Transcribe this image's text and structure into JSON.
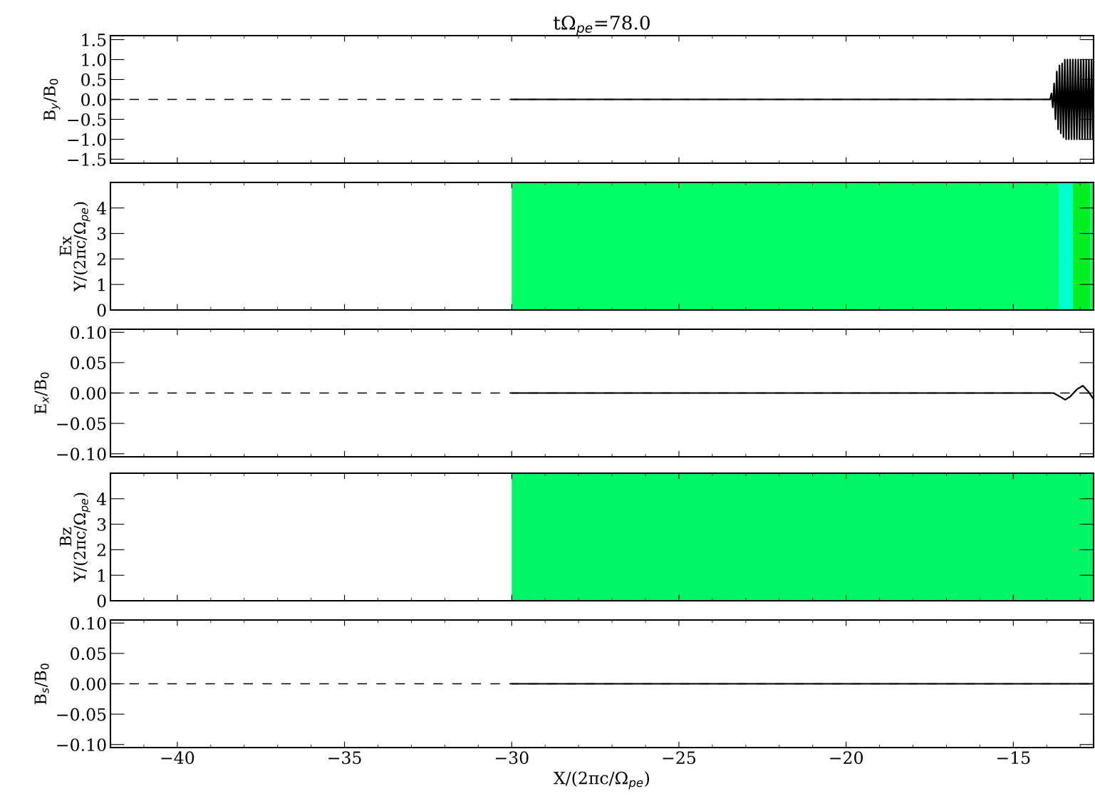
{
  "chart_data": [
    {
      "type": "line",
      "title": "tΩ$_{pe}$=78.0",
      "ylabel": "B$_{y}$/B$_{0}$",
      "xlim": [
        -42,
        -12.6
      ],
      "xticks": [
        -40,
        -35,
        -30,
        -25,
        -20,
        -15
      ],
      "ylim": [
        -1.6,
        1.6
      ],
      "tick_labels": "y",
      "line_style": "solid",
      "grid": false,
      "legend": false,
      "marker": "none",
      "yticks": [
        {
          "value": -1.5,
          "label": "−1.5"
        },
        {
          "value": -1.0,
          "label": "−1.0"
        },
        {
          "value": -0.5,
          "label": "−0.5"
        },
        {
          "value": 0,
          "label": "0.0"
        },
        {
          "value": 0.5,
          "label": "0.5"
        },
        {
          "value": 1.0,
          "label": "1.0"
        },
        {
          "value": 1.5,
          "label": "1.5"
        }
      ],
      "ref_lines": [
        {
          "axis": "y",
          "value": 0,
          "color": "#000000",
          "line_style": "dashed"
        }
      ],
      "series": [
        {
          "color": "#000000",
          "x": [
            -30,
            -13.9,
            -13.86,
            -13.82,
            -13.78,
            -13.74,
            -13.7,
            -13.66,
            -13.62,
            -13.58,
            -13.54,
            -13.5,
            -13.46,
            -13.42,
            -13.38,
            -13.34,
            -13.3,
            -13.26,
            -13.22,
            -13.18,
            -13.14,
            -13.1,
            -13.06,
            -13.02,
            -12.98,
            -12.94,
            -12.9,
            -12.86,
            -12.82,
            -12.78,
            -12.74,
            -12.7,
            -12.66,
            -12.62
          ],
          "values": [
            0,
            0,
            0.15,
            -0.2,
            0.4,
            -0.5,
            0.7,
            -0.75,
            0.85,
            -0.85,
            0.9,
            -0.95,
            1.0,
            -1.0,
            1.0,
            -1.0,
            1.0,
            -1.0,
            1.0,
            -1.0,
            1.0,
            -1.0,
            1.0,
            -1.0,
            1.0,
            -1.0,
            1.0,
            -1.0,
            1.0,
            -1.0,
            1.0,
            -1.0,
            1.0,
            -1.0
          ]
        }
      ]
    },
    {
      "type": "line",
      "ylabel": "Ex\nY/(2πc/Ω$_{pe}$)",
      "xlim": [
        -42,
        -12.6
      ],
      "xticks": [
        -40,
        -35,
        -30,
        -25,
        -20,
        -15
      ],
      "ylim": [
        0,
        5
      ],
      "yticks": [
        0,
        1,
        2,
        3,
        4
      ],
      "tick_labels": "y",
      "bands": [
        {
          "axis": "x",
          "from": -30,
          "to": -13.66,
          "color": "#00ff66"
        },
        {
          "axis": "x",
          "from": -13.66,
          "to": -13.23,
          "color": "#00ffcc"
        },
        {
          "axis": "x",
          "from": -13.23,
          "to": -12.7,
          "color": "#00ee22"
        },
        {
          "axis": "x",
          "from": -12.7,
          "to": -12.6,
          "color": "#00ff66"
        }
      ]
    },
    {
      "type": "line",
      "ylabel": "E$_{x}$/B$_{0}$",
      "xlim": [
        -42,
        -12.6
      ],
      "xticks": [
        -40,
        -35,
        -30,
        -25,
        -20,
        -15
      ],
      "ylim": [
        -0.105,
        0.105
      ],
      "tick_labels": "y",
      "line_style": "solid",
      "grid": false,
      "legend": false,
      "marker": "none",
      "yticks": [
        {
          "value": -0.1,
          "label": "−0.10"
        },
        {
          "value": -0.05,
          "label": "−0.05"
        },
        {
          "value": 0,
          "label": "0.00"
        },
        {
          "value": 0.05,
          "label": "0.05"
        },
        {
          "value": 0.1,
          "label": "0.10"
        }
      ],
      "ref_lines": [
        {
          "axis": "y",
          "value": 0,
          "color": "#000000",
          "line_style": "dashed"
        }
      ],
      "series": [
        {
          "color": "#000000",
          "x": [
            -30,
            -13.8,
            -13.6,
            -13.45,
            -13.3,
            -13.1,
            -12.92,
            -12.75,
            -12.6
          ],
          "values": [
            0,
            0,
            -0.006,
            -0.011,
            -0.006,
            0.006,
            0.012,
            0.002,
            -0.01
          ]
        }
      ]
    },
    {
      "type": "line",
      "ylabel": "Bz\nY/(2πc/Ω$_{pe}$)",
      "xlim": [
        -42,
        -12.6
      ],
      "xticks": [
        -40,
        -35,
        -30,
        -25,
        -20,
        -15
      ],
      "ylim": [
        0,
        5
      ],
      "yticks": [
        0,
        1,
        2,
        3,
        4
      ],
      "tick_labels": "y",
      "bands": [
        {
          "axis": "x",
          "from": -30,
          "to": -12.6,
          "color": "#00f566"
        }
      ]
    },
    {
      "type": "line",
      "ylabel": "B$_{s}$/B$_{0}$",
      "xlabel": "X/(2πc/Ω$_{pe}$)",
      "xlim": [
        -42,
        -12.6
      ],
      "ylim": [
        -0.105,
        0.105
      ],
      "line_style": "solid",
      "grid": false,
      "legend": false,
      "marker": "none",
      "xticks": [
        {
          "value": -40,
          "label": "−40"
        },
        {
          "value": -35,
          "label": "−35"
        },
        {
          "value": -30,
          "label": "−30"
        },
        {
          "value": -25,
          "label": "−25"
        },
        {
          "value": -20,
          "label": "−20"
        },
        {
          "value": -15,
          "label": "−15"
        }
      ],
      "yticks": [
        {
          "value": -0.1,
          "label": "−0.10"
        },
        {
          "value": -0.05,
          "label": "−0.05"
        },
        {
          "value": 0,
          "label": "0.00"
        },
        {
          "value": 0.05,
          "label": "0.05"
        },
        {
          "value": 0.1,
          "label": "0.10"
        }
      ],
      "ref_lines": [
        {
          "axis": "y",
          "value": 0,
          "color": "#000000",
          "line_style": "dashed"
        }
      ],
      "series": [
        {
          "color": "#000000",
          "x": [
            -30,
            -12.6
          ],
          "values": [
            0,
            0
          ]
        }
      ]
    }
  ]
}
